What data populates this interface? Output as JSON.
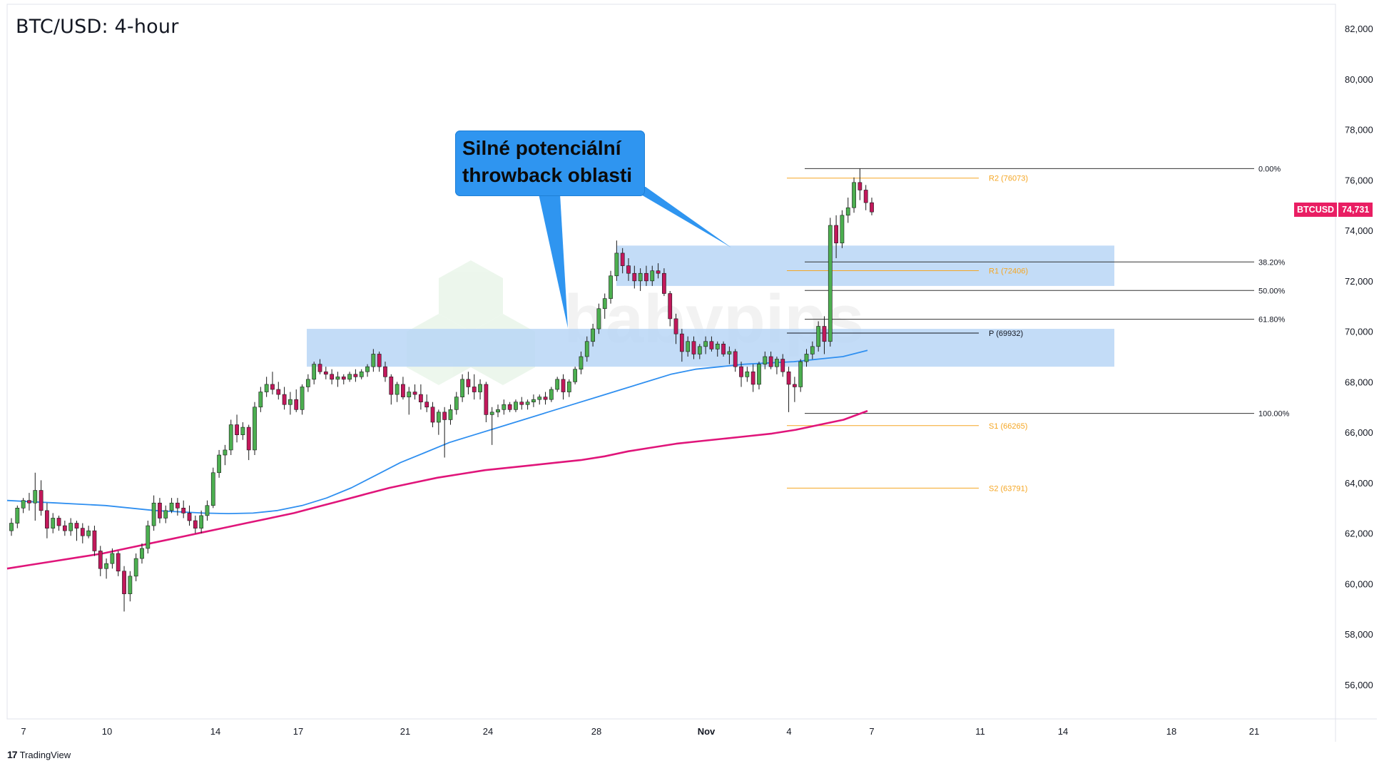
{
  "title": "BTC/USD: 4-hour",
  "callout_text": "Silné potenciální throwback oblasti",
  "watermark_text": "babypips",
  "footer_text": "TradingView",
  "footer_logo": "17",
  "price_badge": {
    "symbol": "BTCUSD",
    "value": "74,731"
  },
  "colors": {
    "up": "#26a69a",
    "up_body": "#4caf50",
    "down": "#c2185b",
    "ema_fast": "#2f8ff0",
    "ema_slow": "#e0157a",
    "zone": "#b8d6f6",
    "pivot": "#f5a623",
    "fib": "#333333",
    "callout": "#2f95f0"
  },
  "chart_data": {
    "type": "candlestick",
    "title": "BTC/USD: 4-hour",
    "y_ticks": [
      "82,000",
      "80,000",
      "78,000",
      "76,000",
      "74,000",
      "72,000",
      "70,000",
      "68,000",
      "66,000",
      "64,000",
      "62,000",
      "60,000",
      "58,000",
      "56,000"
    ],
    "y_tick_values": [
      82000,
      80000,
      78000,
      76000,
      74000,
      72000,
      70000,
      68000,
      66000,
      64000,
      62000,
      60000,
      58000,
      56000
    ],
    "ylim": [
      54000,
      82800
    ],
    "x_ticks": [
      "7",
      "10",
      "14",
      "17",
      "21",
      "24",
      "28",
      "Nov",
      "4",
      "7",
      "11",
      "14",
      "18",
      "21"
    ],
    "current_price": 74731,
    "zones": [
      {
        "from": 71800,
        "to": 73400,
        "label": "upper throwback zone"
      },
      {
        "from": 68600,
        "to": 70100,
        "label": "lower throwback zone"
      }
    ],
    "fibonacci": [
      {
        "level": "0.00%",
        "price": 76450
      },
      {
        "level": "38.20%",
        "price": 72750
      },
      {
        "level": "50.00%",
        "price": 71620
      },
      {
        "level": "61.80%",
        "price": 70480
      },
      {
        "level": "100.00%",
        "price": 66750
      }
    ],
    "pivots": [
      {
        "label": "R2 (76073)",
        "price": 76073
      },
      {
        "label": "R1 (72406)",
        "price": 72406
      },
      {
        "label": "P (69932)",
        "price": 69932
      },
      {
        "label": "S1 (66265)",
        "price": 66265
      },
      {
        "label": "S2 (63791)",
        "price": 63791
      }
    ],
    "series": [
      {
        "type": "ohlc",
        "values": [
          [
            62100,
            62600,
            61900,
            62400
          ],
          [
            62400,
            63100,
            62200,
            63000
          ],
          [
            63000,
            63400,
            62800,
            63300
          ],
          [
            63300,
            63600,
            62900,
            63200
          ],
          [
            63200,
            64400,
            62500,
            63700
          ],
          [
            63700,
            64100,
            62700,
            62900
          ],
          [
            62900,
            63200,
            61800,
            62200
          ],
          [
            62200,
            62800,
            62000,
            62600
          ],
          [
            62600,
            62700,
            62100,
            62300
          ],
          [
            62300,
            62500,
            61900,
            62100
          ],
          [
            62100,
            62600,
            61900,
            62400
          ],
          [
            62400,
            62500,
            61700,
            62200
          ],
          [
            62200,
            62400,
            61600,
            61900
          ],
          [
            61900,
            62300,
            61800,
            62100
          ],
          [
            62100,
            62300,
            61100,
            61300
          ],
          [
            61300,
            61500,
            60300,
            60600
          ],
          [
            60600,
            61000,
            60200,
            60800
          ],
          [
            60800,
            61400,
            60600,
            61200
          ],
          [
            61200,
            61300,
            60300,
            60500
          ],
          [
            60500,
            60700,
            58900,
            59600
          ],
          [
            59600,
            60500,
            59300,
            60300
          ],
          [
            60300,
            61200,
            60100,
            61000
          ],
          [
            61000,
            61600,
            60800,
            61400
          ],
          [
            61400,
            62500,
            61200,
            62300
          ],
          [
            62300,
            63500,
            62100,
            63200
          ],
          [
            63200,
            63400,
            62400,
            62600
          ],
          [
            62600,
            63100,
            62400,
            62900
          ],
          [
            62900,
            63400,
            62800,
            63200
          ],
          [
            63200,
            63400,
            62700,
            63000
          ],
          [
            63000,
            63300,
            62600,
            62800
          ],
          [
            62800,
            63100,
            62300,
            62500
          ],
          [
            62500,
            62700,
            62000,
            62200
          ],
          [
            62200,
            62900,
            62000,
            62700
          ],
          [
            62700,
            63300,
            62500,
            63100
          ],
          [
            63100,
            64600,
            63000,
            64400
          ],
          [
            64400,
            65300,
            64200,
            65100
          ],
          [
            65100,
            65500,
            64700,
            65300
          ],
          [
            65300,
            66500,
            65100,
            66300
          ],
          [
            66300,
            66700,
            65600,
            65900
          ],
          [
            65900,
            66400,
            65700,
            66200
          ],
          [
            66200,
            66300,
            64900,
            65300
          ],
          [
            65300,
            67200,
            65100,
            67000
          ],
          [
            67000,
            67800,
            66800,
            67600
          ],
          [
            67600,
            68200,
            67400,
            67900
          ],
          [
            67900,
            68400,
            67500,
            67700
          ],
          [
            67700,
            68000,
            67300,
            67500
          ],
          [
            67500,
            67800,
            66900,
            67100
          ],
          [
            67100,
            67600,
            66700,
            67300
          ],
          [
            67300,
            67700,
            66800,
            66900
          ],
          [
            66900,
            67900,
            66700,
            67800
          ],
          [
            67800,
            68300,
            67600,
            68100
          ],
          [
            68100,
            68800,
            67900,
            68700
          ],
          [
            68700,
            68900,
            68300,
            68400
          ],
          [
            68400,
            68600,
            68100,
            68300
          ],
          [
            68300,
            68500,
            67900,
            68100
          ],
          [
            68100,
            68400,
            67800,
            68200
          ],
          [
            68200,
            68300,
            67900,
            68100
          ],
          [
            68100,
            68400,
            68000,
            68300
          ],
          [
            68300,
            68500,
            68000,
            68200
          ],
          [
            68200,
            68500,
            68100,
            68400
          ],
          [
            68400,
            68700,
            68200,
            68600
          ],
          [
            68600,
            69300,
            68400,
            69100
          ],
          [
            69100,
            69200,
            68400,
            68600
          ],
          [
            68600,
            68800,
            68000,
            68200
          ],
          [
            68200,
            68300,
            67100,
            67500
          ],
          [
            67500,
            68000,
            67200,
            67900
          ],
          [
            67900,
            68200,
            67300,
            67400
          ],
          [
            67400,
            67800,
            66700,
            67600
          ],
          [
            67600,
            67900,
            67300,
            67500
          ],
          [
            67500,
            67900,
            66900,
            67200
          ],
          [
            67200,
            67500,
            66800,
            67000
          ],
          [
            67000,
            67200,
            66200,
            66400
          ],
          [
            66400,
            66900,
            65900,
            66800
          ],
          [
            66800,
            67000,
            65000,
            66500
          ],
          [
            66500,
            67100,
            66300,
            66900
          ],
          [
            66900,
            67600,
            66700,
            67400
          ],
          [
            67400,
            68300,
            67200,
            68100
          ],
          [
            68100,
            68400,
            67500,
            67800
          ],
          [
            67800,
            68300,
            67300,
            67600
          ],
          [
            67600,
            68100,
            67300,
            67900
          ],
          [
            67900,
            68000,
            66400,
            66700
          ],
          [
            66700,
            67000,
            65500,
            66800
          ],
          [
            66800,
            67100,
            66600,
            66900
          ],
          [
            66900,
            67300,
            66700,
            67100
          ],
          [
            67100,
            67200,
            66800,
            66900
          ],
          [
            66900,
            67300,
            66800,
            67200
          ],
          [
            67200,
            67400,
            66900,
            67100
          ],
          [
            67100,
            67300,
            66900,
            67200
          ],
          [
            67200,
            67500,
            67000,
            67300
          ],
          [
            67300,
            67500,
            67100,
            67400
          ],
          [
            67400,
            67600,
            67100,
            67300
          ],
          [
            67300,
            67800,
            67200,
            67700
          ],
          [
            67700,
            68200,
            67600,
            68100
          ],
          [
            68100,
            68300,
            67300,
            67600
          ],
          [
            67600,
            68100,
            67400,
            68000
          ],
          [
            68000,
            68600,
            67900,
            68500
          ],
          [
            68500,
            69200,
            68300,
            69000
          ],
          [
            69000,
            69800,
            68800,
            69600
          ],
          [
            69600,
            70300,
            69400,
            70100
          ],
          [
            70100,
            71100,
            69900,
            70900
          ],
          [
            70900,
            71500,
            70500,
            71300
          ],
          [
            71300,
            72400,
            71100,
            72200
          ],
          [
            72200,
            73600,
            72000,
            73100
          ],
          [
            73100,
            73300,
            72300,
            72600
          ],
          [
            72600,
            72900,
            72000,
            72300
          ],
          [
            72300,
            72600,
            71700,
            72000
          ],
          [
            72000,
            72500,
            71600,
            72300
          ],
          [
            72300,
            72600,
            71800,
            72000
          ],
          [
            72000,
            72600,
            71800,
            72400
          ],
          [
            72400,
            72700,
            72100,
            72300
          ],
          [
            72300,
            72500,
            71400,
            71500
          ],
          [
            71500,
            71600,
            70200,
            70500
          ],
          [
            70500,
            70700,
            69500,
            69900
          ],
          [
            69900,
            70100,
            68800,
            69200
          ],
          [
            69200,
            69800,
            69000,
            69600
          ],
          [
            69600,
            69800,
            68900,
            69100
          ],
          [
            69100,
            69500,
            68900,
            69400
          ],
          [
            69400,
            69800,
            69100,
            69600
          ],
          [
            69600,
            69800,
            69200,
            69300
          ],
          [
            69300,
            69600,
            69000,
            69500
          ],
          [
            69500,
            69600,
            69000,
            69100
          ],
          [
            69100,
            69400,
            68700,
            69200
          ],
          [
            69200,
            69300,
            68400,
            68600
          ],
          [
            68600,
            68800,
            67800,
            68200
          ],
          [
            68200,
            68600,
            68000,
            68400
          ],
          [
            68400,
            68700,
            67600,
            67900
          ],
          [
            67900,
            68800,
            67700,
            68700
          ],
          [
            68700,
            69200,
            68500,
            69000
          ],
          [
            69000,
            69200,
            68500,
            68600
          ],
          [
            68600,
            69000,
            68300,
            68900
          ],
          [
            68900,
            69100,
            68200,
            68400
          ],
          [
            68400,
            68600,
            66800,
            67900
          ],
          [
            67900,
            68200,
            67200,
            67800
          ],
          [
            67800,
            68900,
            67600,
            68800
          ],
          [
            68800,
            69300,
            68600,
            69100
          ],
          [
            69100,
            69600,
            68900,
            69400
          ],
          [
            69400,
            70400,
            69200,
            70200
          ],
          [
            70200,
            70600,
            69100,
            69600
          ],
          [
            69600,
            74500,
            69400,
            74200
          ],
          [
            74200,
            74600,
            72900,
            73500
          ],
          [
            73500,
            74800,
            73300,
            74600
          ],
          [
            74600,
            75300,
            74300,
            74900
          ],
          [
            74900,
            76100,
            74700,
            75900
          ],
          [
            75900,
            76450,
            75200,
            75600
          ],
          [
            75600,
            75800,
            74800,
            75100
          ],
          [
            75100,
            75300,
            74600,
            74731
          ]
        ]
      },
      {
        "name": "",
        "type": "line",
        "values": [
          63300,
          63250,
          63200,
          63150,
          63100,
          63000,
          62900,
          62850,
          62800,
          62780,
          62800,
          62900,
          63100,
          63400,
          63800,
          64300,
          64800,
          65200,
          65600,
          65900,
          66200,
          66500,
          66800,
          67100,
          67400,
          67700,
          68000,
          68300,
          68500,
          68600,
          68700,
          68750,
          68800,
          68900,
          69000,
          69250
        ]
      },
      {
        "name": "",
        "type": "line",
        "values": [
          60600,
          60750,
          60900,
          61050,
          61200,
          61400,
          61600,
          61800,
          62000,
          62200,
          62400,
          62600,
          62800,
          63050,
          63300,
          63550,
          63800,
          64000,
          64200,
          64350,
          64500,
          64600,
          64700,
          64800,
          64900,
          65050,
          65250,
          65400,
          65550,
          65650,
          65750,
          65850,
          65950,
          66100,
          66300,
          66500,
          66850
        ]
      }
    ]
  }
}
